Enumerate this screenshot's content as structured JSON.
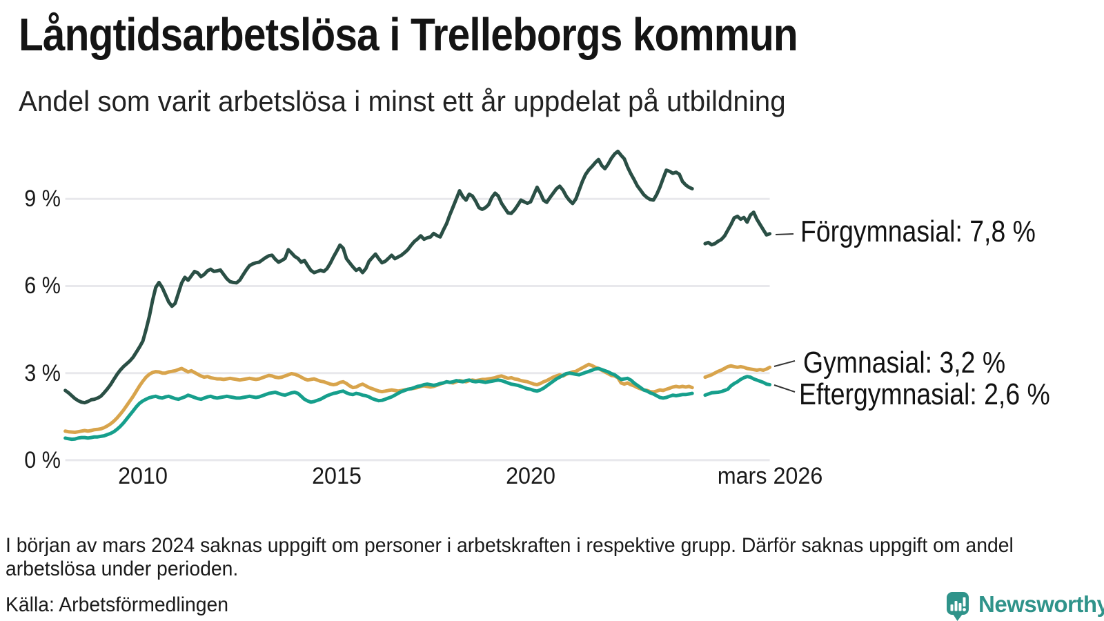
{
  "header": {
    "title": "Långtidsarbetslösa i Trelleborgs kommun",
    "subtitle": "Andel som varit arbetslösa i minst ett år uppdelat på utbildning"
  },
  "chart_data": {
    "type": "line",
    "unit": "%",
    "x_start": "2008-01",
    "x_end": "2026-03",
    "x_frequency": "monthly",
    "missing_data_range": "2024-03 till 2024-06",
    "grid": "horizontal",
    "legend_position": "right-end-labels",
    "ylim": [
      0,
      11.2
    ],
    "y_ticks": [
      0,
      3,
      6,
      9
    ],
    "y_tick_labels": [
      "0 %",
      "3 %",
      "6 %",
      "9 %"
    ],
    "x_tick_labels": [
      "2010",
      "2015",
      "2020",
      "mars 2026"
    ],
    "series": [
      {
        "id": "forgymnasial",
        "name": "Förgymnasial",
        "label": "Förgymnasial: 7,8 %",
        "final_value": "7,8 %",
        "color": "#2a4f45",
        "values": [
          2.4,
          2.32,
          2.22,
          2.12,
          2.05,
          2,
          1.98,
          2.02,
          2.08,
          2.1,
          2.14,
          2.2,
          2.32,
          2.45,
          2.6,
          2.78,
          2.95,
          3.1,
          3.22,
          3.32,
          3.42,
          3.55,
          3.72,
          3.9,
          4.1,
          4.5,
          4.95,
          5.5,
          5.95,
          6.12,
          5.95,
          5.7,
          5.45,
          5.3,
          5.4,
          5.75,
          6.1,
          6.3,
          6.2,
          6.35,
          6.5,
          6.45,
          6.32,
          6.4,
          6.52,
          6.58,
          6.5,
          6.52,
          6.55,
          6.4,
          6.25,
          6.15,
          6.12,
          6.11,
          6.2,
          6.38,
          6.55,
          6.7,
          6.76,
          6.8,
          6.82,
          6.9,
          6.98,
          7.04,
          7.06,
          6.92,
          6.82,
          6.88,
          6.95,
          7.25,
          7.14,
          7.02,
          6.95,
          6.82,
          6.88,
          6.7,
          6.54,
          6.46,
          6.5,
          6.54,
          6.5,
          6.6,
          6.78,
          7,
          7.2,
          7.41,
          7.3,
          6.94,
          6.8,
          6.66,
          6.54,
          6.6,
          6.46,
          6.6,
          6.85,
          6.98,
          7.1,
          6.94,
          6.8,
          6.85,
          6.95,
          7.06,
          6.94,
          7,
          7.06,
          7.15,
          7.25,
          7.4,
          7.53,
          7.62,
          7.73,
          7.61,
          7.66,
          7.69,
          7.81,
          7.74,
          7.69,
          7.93,
          8.15,
          8.45,
          8.72,
          9,
          9.28,
          9.08,
          8.96,
          9.16,
          9.1,
          8.92,
          8.7,
          8.64,
          8.7,
          8.8,
          9.05,
          9.2,
          9.1,
          8.85,
          8.68,
          8.52,
          8.5,
          8.62,
          8.78,
          8.96,
          8.9,
          8.85,
          8.9,
          9.15,
          9.4,
          9.2,
          8.95,
          8.88,
          9.05,
          9.2,
          9.35,
          9.44,
          9.3,
          9.1,
          8.95,
          8.84,
          9,
          9.3,
          9.6,
          9.84,
          10,
          10.12,
          10.25,
          10.36,
          10.15,
          10.04,
          10.2,
          10.4,
          10.55,
          10.64,
          10.5,
          10.38,
          10.1,
          9.87,
          9.67,
          9.45,
          9.3,
          9.15,
          9.05,
          8.98,
          8.96,
          9.15,
          9.4,
          9.7,
          9.99,
          9.95,
          9.88,
          9.92,
          9.85,
          9.6,
          9.48,
          9.4,
          9.35,
          null,
          null,
          null,
          7.46,
          7.5,
          7.42,
          7.46,
          7.54,
          7.6,
          7.72,
          7.92,
          8.12,
          8.35,
          8.4,
          8.3,
          8.36,
          8.2,
          8.44,
          8.54,
          8.3,
          8.12,
          7.94,
          7.76,
          7.8
        ]
      },
      {
        "id": "gymnasial",
        "name": "Gymnasial",
        "label": "Gymnasial: 3,2 %",
        "final_value": "3,2 %",
        "color": "#d8a44c",
        "values": [
          1,
          0.98,
          0.97,
          0.96,
          0.98,
          1,
          1.02,
          1,
          1.02,
          1.05,
          1.06,
          1.08,
          1.12,
          1.18,
          1.25,
          1.34,
          1.45,
          1.58,
          1.72,
          1.88,
          2.04,
          2.2,
          2.38,
          2.56,
          2.72,
          2.86,
          2.96,
          3.02,
          3.05,
          3.04,
          3,
          3,
          3.04,
          3.06,
          3.08,
          3.12,
          3.16,
          3.1,
          3.04,
          3.08,
          3.02,
          2.96,
          2.9,
          2.86,
          2.88,
          2.84,
          2.82,
          2.8,
          2.8,
          2.78,
          2.8,
          2.82,
          2.8,
          2.78,
          2.76,
          2.78,
          2.8,
          2.82,
          2.8,
          2.78,
          2.8,
          2.84,
          2.88,
          2.92,
          2.9,
          2.86,
          2.84,
          2.86,
          2.9,
          2.94,
          2.98,
          2.96,
          2.92,
          2.86,
          2.8,
          2.76,
          2.78,
          2.8,
          2.76,
          2.72,
          2.7,
          2.66,
          2.62,
          2.6,
          2.62,
          2.68,
          2.7,
          2.64,
          2.56,
          2.5,
          2.52,
          2.58,
          2.62,
          2.56,
          2.5,
          2.46,
          2.42,
          2.38,
          2.36,
          2.38,
          2.4,
          2.42,
          2.4,
          2.38,
          2.4,
          2.42,
          2.44,
          2.46,
          2.48,
          2.5,
          2.54,
          2.56,
          2.54,
          2.52,
          2.54,
          2.58,
          2.62,
          2.66,
          2.7,
          2.68,
          2.66,
          2.7,
          2.74,
          2.72,
          2.7,
          2.74,
          2.76,
          2.74,
          2.76,
          2.78,
          2.78,
          2.8,
          2.82,
          2.84,
          2.88,
          2.9,
          2.86,
          2.82,
          2.84,
          2.8,
          2.78,
          2.74,
          2.72,
          2.7,
          2.66,
          2.62,
          2.6,
          2.64,
          2.7,
          2.74,
          2.8,
          2.86,
          2.9,
          2.94,
          2.9,
          2.96,
          3,
          3.04,
          3.06,
          3.12,
          3.18,
          3.24,
          3.3,
          3.26,
          3.2,
          3.16,
          3.1,
          3.04,
          2.98,
          2.92,
          2.9,
          2.84,
          2.66,
          2.62,
          2.66,
          2.6,
          2.56,
          2.5,
          2.46,
          2.42,
          2.4,
          2.36,
          2.35,
          2.38,
          2.42,
          2.4,
          2.44,
          2.48,
          2.52,
          2.54,
          2.52,
          2.54,
          2.52,
          2.54,
          2.5,
          null,
          null,
          null,
          2.86,
          2.9,
          2.94,
          3,
          3.06,
          3.1,
          3.16,
          3.22,
          3.25,
          3.22,
          3.2,
          3.22,
          3.2,
          3.16,
          3.14,
          3.12,
          3.1,
          3.12,
          3.1,
          3.14,
          3.2
        ]
      },
      {
        "id": "eftergymnasial",
        "name": "Eftergymnasial",
        "label": "Eftergymnasial: 2,6 %",
        "final_value": "2,6 %",
        "color": "#169f8c",
        "values": [
          0.76,
          0.74,
          0.72,
          0.73,
          0.76,
          0.78,
          0.78,
          0.76,
          0.78,
          0.8,
          0.8,
          0.82,
          0.84,
          0.88,
          0.92,
          0.98,
          1.06,
          1.16,
          1.28,
          1.42,
          1.56,
          1.7,
          1.84,
          1.96,
          2.04,
          2.1,
          2.15,
          2.18,
          2.2,
          2.16,
          2.14,
          2.18,
          2.2,
          2.16,
          2.12,
          2.1,
          2.14,
          2.18,
          2.24,
          2.2,
          2.16,
          2.12,
          2.1,
          2.14,
          2.18,
          2.2,
          2.16,
          2.14,
          2.16,
          2.18,
          2.2,
          2.18,
          2.16,
          2.14,
          2.14,
          2.16,
          2.18,
          2.2,
          2.18,
          2.16,
          2.18,
          2.22,
          2.26,
          2.3,
          2.32,
          2.34,
          2.3,
          2.26,
          2.24,
          2.28,
          2.32,
          2.34,
          2.3,
          2.2,
          2.1,
          2.04,
          2,
          2.02,
          2.06,
          2.1,
          2.16,
          2.22,
          2.26,
          2.3,
          2.32,
          2.36,
          2.38,
          2.32,
          2.28,
          2.26,
          2.3,
          2.28,
          2.24,
          2.22,
          2.18,
          2.12,
          2.08,
          2.05,
          2.06,
          2.1,
          2.14,
          2.18,
          2.24,
          2.3,
          2.36,
          2.4,
          2.44,
          2.46,
          2.5,
          2.54,
          2.56,
          2.6,
          2.62,
          2.6,
          2.58,
          2.6,
          2.64,
          2.66,
          2.7,
          2.68,
          2.7,
          2.74,
          2.72,
          2.7,
          2.74,
          2.76,
          2.72,
          2.7,
          2.72,
          2.7,
          2.68,
          2.7,
          2.72,
          2.74,
          2.76,
          2.74,
          2.7,
          2.66,
          2.62,
          2.6,
          2.58,
          2.54,
          2.5,
          2.46,
          2.44,
          2.4,
          2.38,
          2.42,
          2.48,
          2.56,
          2.64,
          2.72,
          2.8,
          2.86,
          2.92,
          2.98,
          3,
          2.98,
          2.96,
          2.94,
          2.98,
          3.02,
          3.06,
          3.1,
          3.14,
          3.16,
          3.12,
          3.08,
          3.04,
          2.98,
          2.94,
          2.86,
          2.78,
          2.8,
          2.82,
          2.76,
          2.66,
          2.58,
          2.5,
          2.42,
          2.38,
          2.32,
          2.28,
          2.22,
          2.16,
          2.14,
          2.16,
          2.2,
          2.24,
          2.22,
          2.24,
          2.26,
          2.26,
          2.28,
          2.3,
          null,
          null,
          null,
          2.24,
          2.28,
          2.32,
          2.33,
          2.34,
          2.36,
          2.4,
          2.44,
          2.56,
          2.64,
          2.7,
          2.78,
          2.84,
          2.88,
          2.86,
          2.8,
          2.76,
          2.72,
          2.68,
          2.62,
          2.6
        ]
      }
    ],
    "gridline_color": "#e8e8ec"
  },
  "footer": {
    "footnote": "I början av mars 2024 saknas uppgift om personer i arbetskraften i respektive grupp. Därför saknas uppgift om andel arbetslösa under perioden.",
    "source": "Källa: Arbetsförmedlingen"
  },
  "branding": {
    "wordmark": "Newsworthy",
    "color": "#2f938a"
  }
}
